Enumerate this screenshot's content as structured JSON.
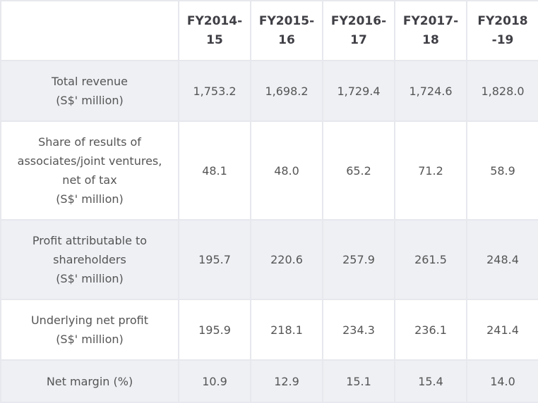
{
  "columns": [
    {
      "line1": "FY2014-",
      "line2": "15"
    },
    {
      "line1": "FY2015-",
      "line2": "16"
    },
    {
      "line1": "FY2016-",
      "line2": "17"
    },
    {
      "line1": "FY2017-",
      "line2": "18"
    },
    {
      "line1": "FY2018",
      "line2": "-19"
    }
  ],
  "rows": [
    {
      "label_lines": [
        "Total revenue",
        "(S$' million)"
      ],
      "values": [
        "1,753.2",
        "1,698.2",
        "1,729.4",
        "1,724.6",
        "1,828.0"
      ]
    },
    {
      "label_lines": [
        "Share of results of",
        "associates/joint ventures,",
        "net of tax",
        "(S$' million)"
      ],
      "values": [
        "48.1",
        "48.0",
        "65.2",
        "71.2",
        "58.9"
      ]
    },
    {
      "label_lines": [
        "Profit attributable to",
        "shareholders",
        "(S$' million)"
      ],
      "values": [
        "195.7",
        "220.6",
        "257.9",
        "261.5",
        "248.4"
      ]
    },
    {
      "label_lines": [
        "Underlying net profit",
        "(S$' million)"
      ],
      "values": [
        "195.9",
        "218.1",
        "234.3",
        "236.1",
        "241.4"
      ]
    },
    {
      "label_lines": [
        "Net margin (%)"
      ],
      "values": [
        "10.9",
        "12.9",
        "15.1",
        "15.4",
        "14.0"
      ]
    }
  ]
}
